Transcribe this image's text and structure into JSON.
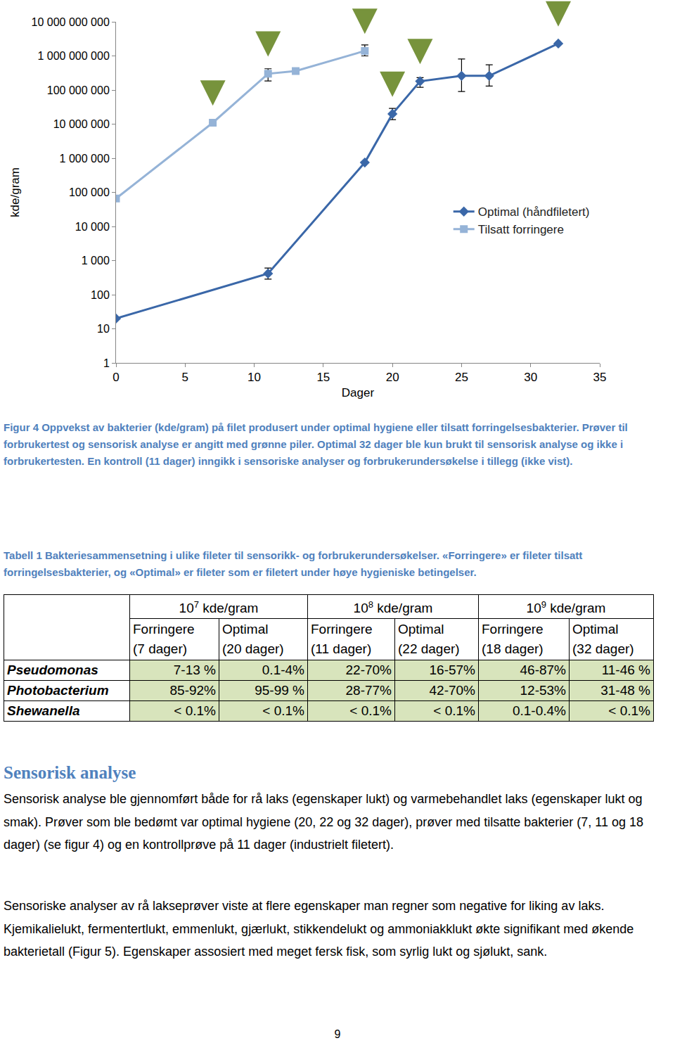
{
  "chart_data": {
    "type": "line",
    "x_label": "Dager",
    "y_label": "kde/gram",
    "log": "y",
    "grid": false,
    "legend": "right",
    "xlim": [
      0,
      35
    ],
    "xticks": [
      0,
      5,
      10,
      15,
      20,
      25,
      30,
      35
    ],
    "ylim": [
      1,
      10000000000
    ],
    "yticks": [
      1,
      10,
      100,
      {
        "value": 1000,
        "label": "1 000"
      },
      {
        "value": 10000,
        "label": "10 000"
      },
      {
        "value": 100000,
        "label": "100 000"
      },
      {
        "value": 1000000,
        "label": "1 000 000"
      },
      {
        "value": 10000000,
        "label": "10 000 000"
      },
      {
        "value": 100000000,
        "label": "100 000 000"
      },
      {
        "value": 1000000000,
        "label": "1 000 000 000"
      },
      {
        "value": 10000000000,
        "label": "10 000 000 000"
      }
    ],
    "sample_days": [
      7,
      11,
      18,
      20,
      22,
      32
    ],
    "series": [
      {
        "name": "Optimal (håndfiletert)",
        "color": "#3a67a8",
        "marker": "diamond",
        "line_style": "solid",
        "x": [
          0,
          11,
          18,
          20,
          22,
          25,
          27,
          32
        ],
        "values": [
          20,
          416,
          750000,
          20000000,
          180000000,
          260000000,
          260000000,
          2300000000
        ],
        "error_plus": [
          null,
          190,
          null,
          9000000,
          50000000,
          550000000,
          290000000,
          null
        ],
        "error_minus": [
          null,
          130,
          null,
          6500000,
          60000000,
          170000000,
          130000000,
          null
        ]
      },
      {
        "name": "Tilsatt forringere",
        "color": "#95b3d7",
        "marker": "square",
        "line_style": "solid",
        "x": [
          0,
          7,
          11,
          13,
          18
        ],
        "values": [
          66000,
          11000000,
          300000000,
          360000000,
          1400000000
        ],
        "error_plus": [
          null,
          null,
          120000000,
          null,
          700000000
        ],
        "error_minus": [
          null,
          null,
          115000000,
          null,
          400000000
        ]
      }
    ]
  },
  "figure_caption": "Figur 4 Oppvekst av bakterier (kde/gram) på filet produsert under optimal hygiene eller tilsatt forringelsesbakterier. Prøver til forbrukertest og sensorisk analyse er angitt med grønne piler. Optimal 32 dager ble kun brukt til sensorisk analyse og ikke i forbrukertesten. En kontroll (11 dager) inngikk i sensoriske analyser og forbrukerundersøkelse i tillegg (ikke vist).",
  "table_caption": "Tabell 1 Bakteriesammensetning i ulike fileter til sensorikk- og forbrukerundersøkelser. «Forringere» er fileter tilsatt forringelsesbakterier, og «Optimal» er fileter som er filetert under høye hygieniske betingelser.",
  "table": {
    "groups": [
      {
        "base": "10",
        "exponent": "7",
        "unit": "kde/gram"
      },
      {
        "base": "10",
        "exponent": "8",
        "unit": "kde/gram"
      },
      {
        "base": "10",
        "exponent": "9",
        "unit": "kde/gram"
      }
    ],
    "columns": [
      [
        "Forringere",
        "(7 dager)"
      ],
      [
        "Optimal",
        "(20 dager)"
      ],
      [
        "Forringere",
        "(11 dager)"
      ],
      [
        "Optimal",
        "(22 dager)"
      ],
      [
        "Forringere",
        "(18 dager)"
      ],
      [
        "Optimal",
        "(32 dager)"
      ]
    ],
    "rows": [
      [
        "Pseudomonas",
        "7-13 %",
        "0.1-4%",
        "22-70%",
        "16-57%",
        "46-87%",
        "11-46 %"
      ],
      [
        "Photobacterium",
        "85-92%",
        "95-99 %",
        "28-77%",
        "42-70%",
        "12-53%",
        "31-48 %"
      ],
      [
        "Shewanella",
        "< 0.1%",
        "< 0.1%",
        "< 0.1%",
        "< 0.1%",
        "0.1-0.4%",
        "< 0.1%"
      ]
    ]
  },
  "section_heading": "Sensorisk analyse",
  "paragraphs": [
    "Sensorisk analyse ble gjennomført både for rå laks (egenskaper lukt) og varmebehandlet laks (egenskaper lukt og smak). Prøver som ble bedømt var optimal hygiene (20, 22 og 32 dager), prøver med tilsatte bakterier (7, 11 og 18 dager) (se figur 4) og en kontrollprøve på 11 dager (industrielt filetert).",
    "Sensoriske analyser av rå lakseprøver viste at flere egenskaper man regner som negative for liking av laks. Kjemikalielukt, fermentertlukt, emmenlukt, gjærlukt, stikkendelukt og ammoniakklukt økte signifikant med økende bakterietall (Figur 5). Egenskaper assosiert med meget fersk fisk, som syrlig lukt og sjølukt, sank."
  ],
  "page_number": "9"
}
